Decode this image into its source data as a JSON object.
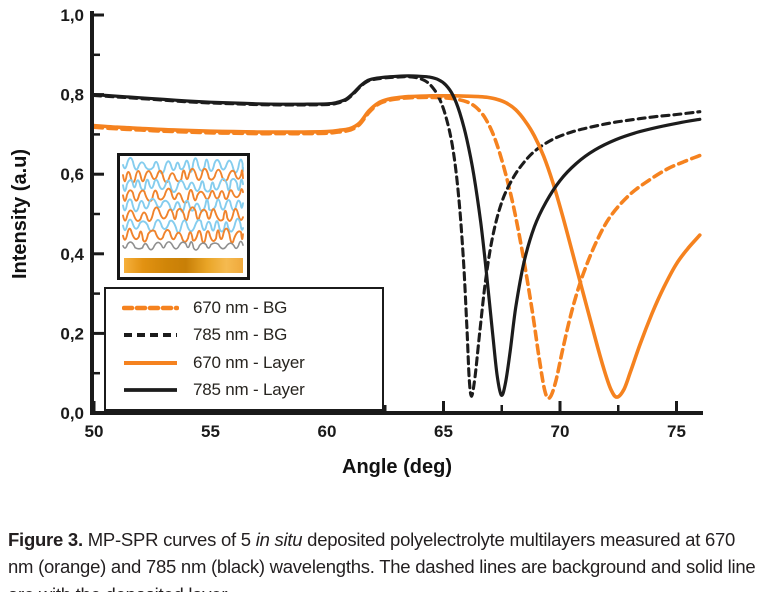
{
  "chart_data": {
    "type": "line",
    "title": "",
    "xlabel": "Angle (deg)",
    "ylabel": "Intensity (a.u)",
    "xlim": [
      50,
      76
    ],
    "ylim": [
      0.0,
      1.0
    ],
    "grid": false,
    "legend_position": "lower-left",
    "x_ticks": {
      "major": [
        {
          "v": 50,
          "label": "50"
        },
        {
          "v": 55,
          "label": "55"
        },
        {
          "v": 60,
          "label": "60"
        },
        {
          "v": 65,
          "label": "65"
        },
        {
          "v": 70,
          "label": "70"
        },
        {
          "v": 75,
          "label": "75"
        }
      ],
      "minor": [
        52.5,
        57.5,
        62.5,
        67.5,
        72.5
      ]
    },
    "y_ticks": {
      "major": [
        {
          "v": 0.0,
          "label": "0,0"
        },
        {
          "v": 0.2,
          "label": "0,2"
        },
        {
          "v": 0.4,
          "label": "0,4"
        },
        {
          "v": 0.6,
          "label": "0,6"
        },
        {
          "v": 0.8,
          "label": "0,8"
        },
        {
          "v": 1.0,
          "label": "1,0"
        }
      ],
      "minor": [
        0.1,
        0.3,
        0.5,
        0.7,
        0.9
      ]
    },
    "series": [
      {
        "name": "670 nm - BG",
        "color": "#F5821F",
        "style": "dashed",
        "width": 3.6,
        "dash": "8.5 5.5",
        "resonance_angle_deg": 69.5,
        "points": [
          [
            50,
            0.718
          ],
          [
            51,
            0.714
          ],
          [
            52,
            0.711
          ],
          [
            53,
            0.708
          ],
          [
            54,
            0.706
          ],
          [
            55,
            0.704
          ],
          [
            56,
            0.703
          ],
          [
            57,
            0.702
          ],
          [
            58,
            0.702
          ],
          [
            59,
            0.702
          ],
          [
            60,
            0.703
          ],
          [
            60.5,
            0.706
          ],
          [
            61,
            0.711
          ],
          [
            61.4,
            0.725
          ],
          [
            61.8,
            0.755
          ],
          [
            62.2,
            0.776
          ],
          [
            62.6,
            0.785
          ],
          [
            63,
            0.789
          ],
          [
            63.5,
            0.792
          ],
          [
            64,
            0.793
          ],
          [
            64.5,
            0.793
          ],
          [
            65,
            0.792
          ],
          [
            65.5,
            0.789
          ],
          [
            66,
            0.782
          ],
          [
            66.4,
            0.768
          ],
          [
            66.8,
            0.74
          ],
          [
            67.2,
            0.69
          ],
          [
            67.6,
            0.615
          ],
          [
            68,
            0.52
          ],
          [
            68.4,
            0.4
          ],
          [
            68.8,
            0.26
          ],
          [
            69.1,
            0.14
          ],
          [
            69.35,
            0.055
          ],
          [
            69.55,
            0.038
          ],
          [
            69.8,
            0.075
          ],
          [
            70.1,
            0.155
          ],
          [
            70.5,
            0.255
          ],
          [
            71,
            0.35
          ],
          [
            71.6,
            0.435
          ],
          [
            72.2,
            0.497
          ],
          [
            73,
            0.549
          ],
          [
            73.8,
            0.584
          ],
          [
            74.6,
            0.613
          ],
          [
            75.3,
            0.631
          ],
          [
            76,
            0.647
          ]
        ]
      },
      {
        "name": "785 nm - BG",
        "color": "#1c1c1c",
        "style": "dashed",
        "width": 3.1,
        "dash": "7 5",
        "resonance_angle_deg": 66.2,
        "points": [
          [
            50,
            0.798
          ],
          [
            51,
            0.794
          ],
          [
            52,
            0.79
          ],
          [
            53,
            0.786
          ],
          [
            54,
            0.782
          ],
          [
            55,
            0.779
          ],
          [
            56,
            0.777
          ],
          [
            57,
            0.775
          ],
          [
            58,
            0.774
          ],
          [
            59,
            0.774
          ],
          [
            60,
            0.775
          ],
          [
            60.4,
            0.778
          ],
          [
            60.8,
            0.786
          ],
          [
            61.1,
            0.8
          ],
          [
            61.4,
            0.818
          ],
          [
            61.7,
            0.832
          ],
          [
            62,
            0.838
          ],
          [
            62.5,
            0.842
          ],
          [
            63,
            0.844
          ],
          [
            63.4,
            0.845
          ],
          [
            63.8,
            0.843
          ],
          [
            64.2,
            0.835
          ],
          [
            64.5,
            0.82
          ],
          [
            64.8,
            0.793
          ],
          [
            65.1,
            0.745
          ],
          [
            65.4,
            0.665
          ],
          [
            65.65,
            0.545
          ],
          [
            65.85,
            0.39
          ],
          [
            66,
            0.22
          ],
          [
            66.1,
            0.09
          ],
          [
            66.2,
            0.042
          ],
          [
            66.35,
            0.09
          ],
          [
            66.55,
            0.2
          ],
          [
            66.8,
            0.33
          ],
          [
            67.1,
            0.44
          ],
          [
            67.5,
            0.53
          ],
          [
            68,
            0.592
          ],
          [
            68.5,
            0.633
          ],
          [
            69,
            0.662
          ],
          [
            69.7,
            0.688
          ],
          [
            70.5,
            0.706
          ],
          [
            71.3,
            0.718
          ],
          [
            72.2,
            0.729
          ],
          [
            73.1,
            0.737
          ],
          [
            74,
            0.744
          ],
          [
            75,
            0.75
          ],
          [
            76,
            0.757
          ]
        ]
      },
      {
        "name": "670 nm - Layer",
        "color": "#F5821F",
        "style": "solid",
        "width": 3.6,
        "dash": null,
        "resonance_angle_deg": 72.45,
        "points": [
          [
            50,
            0.722
          ],
          [
            51,
            0.718
          ],
          [
            52,
            0.715
          ],
          [
            53,
            0.712
          ],
          [
            54,
            0.71
          ],
          [
            55,
            0.708
          ],
          [
            56,
            0.707
          ],
          [
            57,
            0.706
          ],
          [
            58,
            0.706
          ],
          [
            59,
            0.706
          ],
          [
            60,
            0.707
          ],
          [
            60.5,
            0.71
          ],
          [
            61,
            0.715
          ],
          [
            61.4,
            0.729
          ],
          [
            61.8,
            0.759
          ],
          [
            62.2,
            0.779
          ],
          [
            62.6,
            0.788
          ],
          [
            63,
            0.792
          ],
          [
            63.5,
            0.795
          ],
          [
            64,
            0.796
          ],
          [
            64.5,
            0.797
          ],
          [
            65,
            0.797
          ],
          [
            65.5,
            0.797
          ],
          [
            66,
            0.796
          ],
          [
            66.5,
            0.795
          ],
          [
            66.9,
            0.793
          ],
          [
            67.3,
            0.788
          ],
          [
            67.7,
            0.779
          ],
          [
            68.1,
            0.762
          ],
          [
            68.5,
            0.734
          ],
          [
            68.9,
            0.696
          ],
          [
            69.3,
            0.645
          ],
          [
            69.7,
            0.578
          ],
          [
            70.1,
            0.498
          ],
          [
            70.5,
            0.41
          ],
          [
            71,
            0.3
          ],
          [
            71.5,
            0.19
          ],
          [
            71.9,
            0.107
          ],
          [
            72.2,
            0.057
          ],
          [
            72.45,
            0.04
          ],
          [
            72.75,
            0.06
          ],
          [
            73.05,
            0.108
          ],
          [
            73.45,
            0.175
          ],
          [
            73.95,
            0.25
          ],
          [
            74.45,
            0.315
          ],
          [
            75,
            0.375
          ],
          [
            75.5,
            0.414
          ],
          [
            76,
            0.447
          ]
        ]
      },
      {
        "name": "785 nm - Layer",
        "color": "#1c1c1c",
        "style": "solid",
        "width": 3.2,
        "dash": null,
        "resonance_angle_deg": 67.5,
        "points": [
          [
            50,
            0.8
          ],
          [
            51,
            0.796
          ],
          [
            52,
            0.792
          ],
          [
            53,
            0.788
          ],
          [
            54,
            0.784
          ],
          [
            55,
            0.781
          ],
          [
            56,
            0.779
          ],
          [
            57,
            0.777
          ],
          [
            58,
            0.776
          ],
          [
            59,
            0.776
          ],
          [
            60,
            0.777
          ],
          [
            60.4,
            0.78
          ],
          [
            60.8,
            0.788
          ],
          [
            61.1,
            0.802
          ],
          [
            61.4,
            0.82
          ],
          [
            61.7,
            0.834
          ],
          [
            62,
            0.84
          ],
          [
            62.5,
            0.844
          ],
          [
            63,
            0.846
          ],
          [
            63.5,
            0.847
          ],
          [
            64,
            0.846
          ],
          [
            64.4,
            0.844
          ],
          [
            64.8,
            0.837
          ],
          [
            65.1,
            0.824
          ],
          [
            65.4,
            0.799
          ],
          [
            65.7,
            0.754
          ],
          [
            66,
            0.688
          ],
          [
            66.3,
            0.598
          ],
          [
            66.6,
            0.478
          ],
          [
            66.85,
            0.348
          ],
          [
            67.1,
            0.205
          ],
          [
            67.3,
            0.095
          ],
          [
            67.48,
            0.045
          ],
          [
            67.65,
            0.072
          ],
          [
            67.85,
            0.15
          ],
          [
            68.1,
            0.265
          ],
          [
            68.45,
            0.378
          ],
          [
            68.9,
            0.468
          ],
          [
            69.4,
            0.53
          ],
          [
            70,
            0.584
          ],
          [
            70.7,
            0.627
          ],
          [
            71.5,
            0.661
          ],
          [
            72.4,
            0.687
          ],
          [
            73.3,
            0.705
          ],
          [
            74.2,
            0.718
          ],
          [
            75.1,
            0.729
          ],
          [
            76,
            0.738
          ]
        ]
      }
    ],
    "axis_color": "#1a1a1a"
  },
  "inset": {
    "description": "schematic of 5 polyelectrolyte multilayers on gold sensor surface",
    "row_colors": [
      "#85CDEE",
      "#F0832C",
      "#85CDEE",
      "#F0832C",
      "#85CDEE",
      "#F0832C",
      "#85CDEE",
      "#F0832C",
      "#8f8f8f"
    ],
    "gold_color": "#E9A527"
  },
  "caption": {
    "label": "Figure 3.",
    "part1": " MP-SPR curves of 5 ",
    "italic": "in situ",
    "part2": " deposited polyelectrolyte multilayers measured at 670 nm (orange) and 785 nm (black) wavelengths. The dashed lines are background and solid line are with the deposited layer."
  }
}
